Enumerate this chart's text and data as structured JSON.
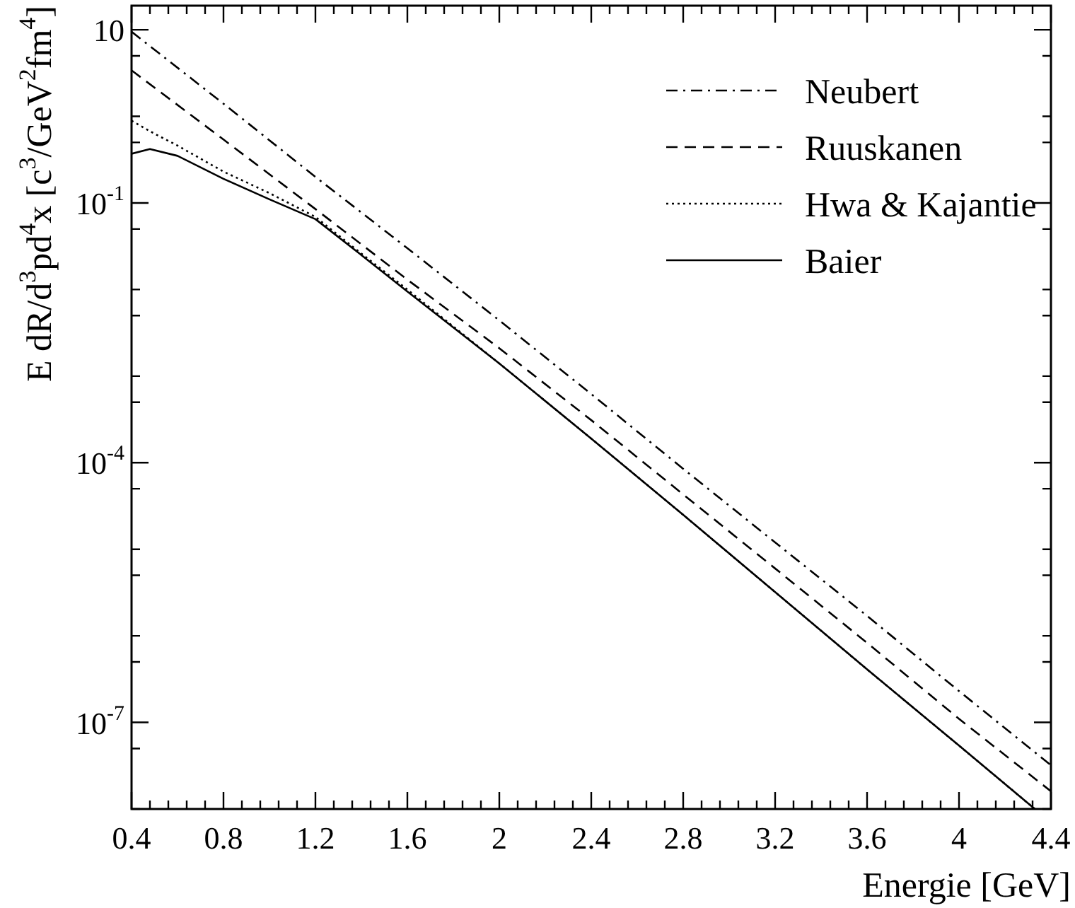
{
  "chart_data": {
    "type": "line",
    "xlabel": "Energie [GeV]",
    "ylabel": "E dR/d$^{3}$pd$^{4}$x [c$^{3}$/GeV$^{2}$fm$^{4}$]",
    "log": "y",
    "grid": false,
    "legend": "top right",
    "marker": "none",
    "xlim": [
      0.4,
      4.4
    ],
    "ylim": [
      1e-08,
      19
    ],
    "xticks": [
      0.4,
      {
        "value": 0.48,
        "label": null
      },
      {
        "value": 0.56,
        "label": null
      },
      {
        "value": 0.64,
        "label": null
      },
      {
        "value": 0.72,
        "label": null
      },
      0.8,
      {
        "value": 0.88,
        "label": null
      },
      {
        "value": 0.96,
        "label": null
      },
      {
        "value": 1.04,
        "label": null
      },
      {
        "value": 1.12,
        "label": null
      },
      1.2,
      {
        "value": 1.28,
        "label": null
      },
      {
        "value": 1.36,
        "label": null
      },
      {
        "value": 1.44,
        "label": null
      },
      {
        "value": 1.52,
        "label": null
      },
      1.6,
      {
        "value": 1.68,
        "label": null
      },
      {
        "value": 1.76,
        "label": null
      },
      {
        "value": 1.84,
        "label": null
      },
      {
        "value": 1.92,
        "label": null
      },
      2,
      {
        "value": 2.08,
        "label": null
      },
      {
        "value": 2.16,
        "label": null
      },
      {
        "value": 2.24,
        "label": null
      },
      {
        "value": 2.32,
        "label": null
      },
      2.4,
      {
        "value": 2.48,
        "label": null
      },
      {
        "value": 2.56,
        "label": null
      },
      {
        "value": 2.64,
        "label": null
      },
      {
        "value": 2.72,
        "label": null
      },
      2.8,
      {
        "value": 2.88,
        "label": null
      },
      {
        "value": 2.96,
        "label": null
      },
      {
        "value": 3.04,
        "label": null
      },
      {
        "value": 3.12,
        "label": null
      },
      3.2,
      {
        "value": 3.28,
        "label": null
      },
      {
        "value": 3.36,
        "label": null
      },
      {
        "value": 3.44,
        "label": null
      },
      {
        "value": 3.52,
        "label": null
      },
      3.6,
      {
        "value": 3.68,
        "label": null
      },
      {
        "value": 3.76,
        "label": null
      },
      {
        "value": 3.84,
        "label": null
      },
      {
        "value": 3.92,
        "label": null
      },
      4,
      {
        "value": 4.08,
        "label": null
      },
      {
        "value": 4.16,
        "label": null
      },
      {
        "value": 4.24,
        "label": null
      },
      {
        "value": 4.32,
        "label": null
      },
      4.4
    ],
    "yticks": [
      {
        "value": 10,
        "label": "10"
      },
      {
        "value": 5,
        "label": null
      },
      {
        "value": 1,
        "label": null
      },
      {
        "value": 0.5,
        "label": null
      },
      {
        "value": 0.1,
        "label": "10$^{-1}$"
      },
      {
        "value": 0.05,
        "label": null
      },
      {
        "value": 0.01,
        "label": null
      },
      {
        "value": 0.005,
        "label": null
      },
      {
        "value": 0.001,
        "label": null
      },
      {
        "value": 0.0005,
        "label": null
      },
      {
        "value": 0.0001,
        "label": "10$^{-4}$"
      },
      {
        "value": 5e-05,
        "label": null
      },
      {
        "value": 1e-05,
        "label": null
      },
      {
        "value": 5e-06,
        "label": null
      },
      {
        "value": 1e-06,
        "label": null
      },
      {
        "value": 5e-07,
        "label": null
      },
      {
        "value": 1e-07,
        "label": "10$^{-7}$"
      },
      {
        "value": 5e-08,
        "label": null
      },
      {
        "value": 1e-08,
        "label": null
      }
    ],
    "series": [
      {
        "name": "Neubert",
        "color": "#000000",
        "line_style": "dashdot",
        "x": [
          0.4,
          0.8,
          1.2,
          1.6,
          2.0,
          2.4,
          2.8,
          3.2,
          3.6,
          4.0,
          4.4
        ],
        "values": [
          9.5,
          1.4,
          0.2,
          0.03,
          0.0044,
          0.00062,
          8.5e-05,
          1.2e-05,
          1.7e-06,
          2.3e-07,
          3.2e-08
        ]
      },
      {
        "name": "Ruuskanen",
        "color": "#000000",
        "line_style": "dashed",
        "x": [
          0.4,
          0.8,
          1.2,
          1.6,
          2.0,
          2.4,
          2.8,
          3.2,
          3.6,
          4.0,
          4.4
        ],
        "values": [
          3.4,
          0.54,
          0.085,
          0.013,
          0.0021,
          0.00031,
          4.3e-05,
          6e-06,
          8.3e-07,
          1.1e-07,
          1.6e-08
        ]
      },
      {
        "name": "Hwa & Kajantie",
        "color": "#000000",
        "line_style": "dotted",
        "x": [
          0.4,
          0.5,
          0.6,
          0.8,
          1.0,
          1.2,
          1.4,
          1.6,
          2.0,
          2.4,
          2.8,
          3.2,
          3.6,
          4.0,
          4.33
        ],
        "values": [
          0.89,
          0.63,
          0.46,
          0.23,
          0.13,
          0.069,
          0.026,
          0.01,
          0.0014,
          0.00019,
          2.5e-05,
          3.2e-06,
          4.1e-07,
          5.4e-08,
          1e-08
        ]
      },
      {
        "name": "Baier",
        "color": "#000000",
        "line_style": "solid",
        "x": [
          0.4,
          0.48,
          0.6,
          0.8,
          1.0,
          1.2,
          1.4,
          1.6,
          2.0,
          2.4,
          2.8,
          3.2,
          3.6,
          4.0,
          4.33
        ],
        "values": [
          0.37,
          0.42,
          0.35,
          0.19,
          0.11,
          0.065,
          0.025,
          0.0095,
          0.0014,
          0.00019,
          2.5e-05,
          3.2e-06,
          4.1e-07,
          5.4e-08,
          1e-08
        ]
      }
    ]
  }
}
